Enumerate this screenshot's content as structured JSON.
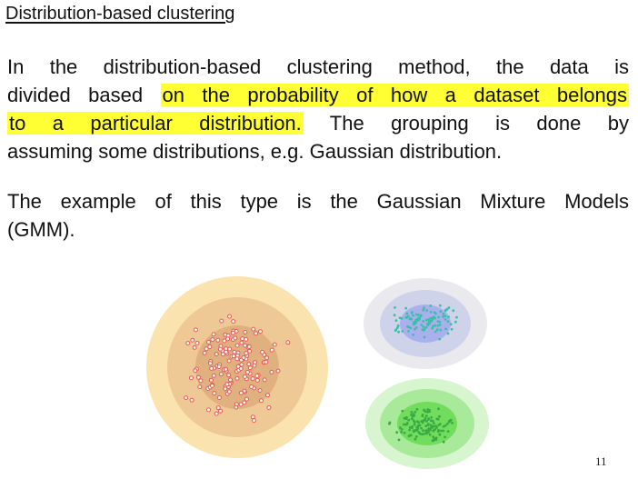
{
  "slide": {
    "title": "Distribution-based clustering",
    "paragraph1": {
      "line1": "In the distribution-based clustering method, the data is",
      "line2_plain": "divided based ",
      "line2_highlight": "on the probability of how a dataset belongs",
      "line3_highlight": "to a particular distribution.",
      "line3_plain": " The grouping is done by",
      "line4": "assuming some distributions, e.g. Gaussian distribution."
    },
    "paragraph2": {
      "line1": "The example of this type is the Gaussian Mixture Models",
      "line2": "(GMM)."
    },
    "page_number": "11"
  },
  "colors": {
    "highlight": "#ffff33",
    "cluster_large_outer": "#fbe3b0",
    "cluster_large_mid": "#eec996",
    "cluster_large_inner": "#e0b07e",
    "cluster_large_points": "#e65a5a",
    "cluster_blue_outer": "#e9e9ee",
    "cluster_blue_mid": "#cfd3ea",
    "cluster_blue_inner": "#aab0ee",
    "cluster_blue_points": "#3bbfa9",
    "cluster_green_outer": "#d7f5cf",
    "cluster_green_mid": "#a8ea9a",
    "cluster_green_inner": "#72dc5c",
    "cluster_green_points": "#3aaa44"
  }
}
